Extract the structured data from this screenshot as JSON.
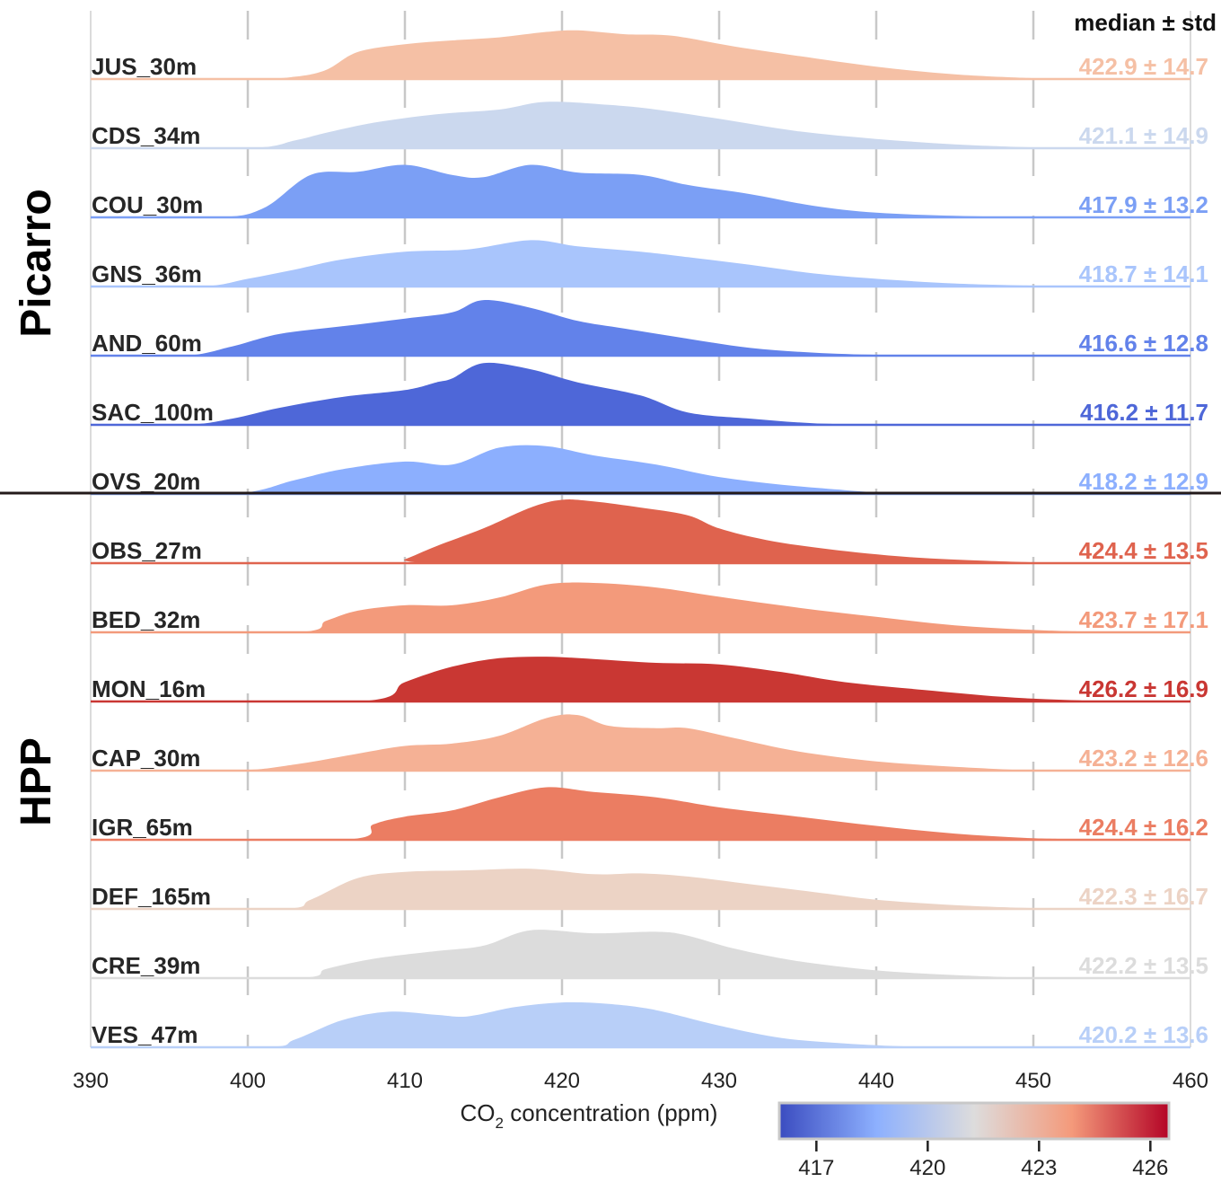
{
  "chart_data": {
    "type": "ridgeline",
    "xlabel": "CO2 concentration (ppm)",
    "xlabel_main": "CO",
    "xlabel_sub": "2",
    "xlabel_rest": " concentration (ppm)",
    "xlim": [
      390,
      460
    ],
    "xticks": [
      "390",
      "400",
      "410",
      "420",
      "430",
      "440",
      "450",
      "460"
    ],
    "stat_header": "median ± std",
    "groups": [
      {
        "name": "Picarro",
        "start": 0,
        "end": 6
      },
      {
        "name": "HPP",
        "start": 7,
        "end": 14
      }
    ],
    "colorbar": {
      "range": [
        416,
        426.5
      ],
      "ticks": [
        "417",
        "420",
        "423",
        "426"
      ],
      "colors": [
        "#3b4cc0",
        "#8db0fe",
        "#dddcdc",
        "#f49a7b",
        "#b40426"
      ]
    },
    "series": [
      {
        "name": "JUS_30m",
        "stat": "422.9 ± 14.7",
        "color": "#f5c0a5",
        "density": [
          [
            390,
            0
          ],
          [
            400,
            0
          ],
          [
            403,
            0.03
          ],
          [
            405,
            0.12
          ],
          [
            407,
            0.35
          ],
          [
            410,
            0.45
          ],
          [
            413,
            0.5
          ],
          [
            416,
            0.54
          ],
          [
            419,
            0.61
          ],
          [
            421,
            0.63
          ],
          [
            424,
            0.58
          ],
          [
            427,
            0.56
          ],
          [
            431,
            0.42
          ],
          [
            435,
            0.3
          ],
          [
            440,
            0.16
          ],
          [
            445,
            0.06
          ],
          [
            450,
            0.01
          ],
          [
            452,
            0
          ]
        ]
      },
      {
        "name": "CDS_34m",
        "stat": "421.1 ± 14.9",
        "color": "#cbd8ee",
        "density": [
          [
            390,
            0
          ],
          [
            400,
            0
          ],
          [
            403,
            0.1
          ],
          [
            405,
            0.2
          ],
          [
            408,
            0.33
          ],
          [
            412,
            0.44
          ],
          [
            416,
            0.5
          ],
          [
            419,
            0.6
          ],
          [
            423,
            0.56
          ],
          [
            426,
            0.5
          ],
          [
            430,
            0.38
          ],
          [
            435,
            0.22
          ],
          [
            440,
            0.12
          ],
          [
            445,
            0.05
          ],
          [
            450,
            0.01
          ],
          [
            452,
            0
          ]
        ]
      },
      {
        "name": "COU_30m",
        "stat": "417.9 ± 13.2",
        "color": "#7b9ff5",
        "density": [
          [
            390,
            0
          ],
          [
            398,
            0
          ],
          [
            401,
            0.12
          ],
          [
            404,
            0.55
          ],
          [
            407,
            0.59
          ],
          [
            410,
            0.68
          ],
          [
            413,
            0.55
          ],
          [
            415,
            0.52
          ],
          [
            418,
            0.68
          ],
          [
            421,
            0.58
          ],
          [
            425,
            0.55
          ],
          [
            428,
            0.42
          ],
          [
            432,
            0.3
          ],
          [
            436,
            0.15
          ],
          [
            440,
            0.06
          ],
          [
            445,
            0.02
          ],
          [
            450,
            0
          ]
        ]
      },
      {
        "name": "GNS_36m",
        "stat": "418.7 ± 14.1",
        "color": "#a9c5fc",
        "density": [
          [
            390,
            0
          ],
          [
            397,
            0
          ],
          [
            400,
            0.1
          ],
          [
            403,
            0.22
          ],
          [
            406,
            0.35
          ],
          [
            410,
            0.45
          ],
          [
            414,
            0.48
          ],
          [
            418,
            0.6
          ],
          [
            421,
            0.52
          ],
          [
            425,
            0.45
          ],
          [
            428,
            0.38
          ],
          [
            432,
            0.28
          ],
          [
            436,
            0.17
          ],
          [
            440,
            0.1
          ],
          [
            445,
            0.04
          ],
          [
            450,
            0.01
          ],
          [
            452,
            0
          ]
        ]
      },
      {
        "name": "AND_60m",
        "stat": "416.6 ± 12.8",
        "color": "#6282ea",
        "density": [
          [
            390,
            0
          ],
          [
            396,
            0
          ],
          [
            399,
            0.12
          ],
          [
            402,
            0.28
          ],
          [
            406,
            0.38
          ],
          [
            410,
            0.48
          ],
          [
            413,
            0.56
          ],
          [
            415,
            0.72
          ],
          [
            418,
            0.62
          ],
          [
            421,
            0.45
          ],
          [
            424,
            0.35
          ],
          [
            428,
            0.22
          ],
          [
            432,
            0.1
          ],
          [
            436,
            0.04
          ],
          [
            440,
            0.01
          ],
          [
            443,
            0
          ]
        ]
      },
      {
        "name": "SAC_100m",
        "stat": "416.2 ± 11.7",
        "color": "#4e67d8",
        "density": [
          [
            390,
            0
          ],
          [
            396,
            0
          ],
          [
            399,
            0.08
          ],
          [
            402,
            0.22
          ],
          [
            406,
            0.36
          ],
          [
            410,
            0.45
          ],
          [
            412,
            0.55
          ],
          [
            413,
            0.6
          ],
          [
            415,
            0.8
          ],
          [
            418,
            0.72
          ],
          [
            421,
            0.55
          ],
          [
            425,
            0.38
          ],
          [
            428,
            0.16
          ],
          [
            432,
            0.08
          ],
          [
            436,
            0.02
          ],
          [
            440,
            0
          ]
        ]
      },
      {
        "name": "OVS_20m",
        "stat": "418.2 ± 12.9",
        "color": "#8caffe",
        "density": [
          [
            390,
            0
          ],
          [
            399,
            0
          ],
          [
            403,
            0.18
          ],
          [
            406,
            0.32
          ],
          [
            410,
            0.42
          ],
          [
            413,
            0.38
          ],
          [
            416,
            0.6
          ],
          [
            419,
            0.62
          ],
          [
            422,
            0.5
          ],
          [
            426,
            0.38
          ],
          [
            430,
            0.22
          ],
          [
            434,
            0.12
          ],
          [
            438,
            0.05
          ],
          [
            441,
            0.01
          ],
          [
            443,
            0
          ]
        ]
      },
      {
        "name": "OBS_27m",
        "stat": "424.4 ± 13.5",
        "color": "#df634e",
        "density": [
          [
            390,
            0
          ],
          [
            409,
            0
          ],
          [
            410,
            0.05
          ],
          [
            412,
            0.22
          ],
          [
            415,
            0.45
          ],
          [
            418,
            0.72
          ],
          [
            420,
            0.82
          ],
          [
            422,
            0.8
          ],
          [
            425,
            0.72
          ],
          [
            428,
            0.62
          ],
          [
            430,
            0.45
          ],
          [
            433,
            0.3
          ],
          [
            437,
            0.18
          ],
          [
            442,
            0.08
          ],
          [
            447,
            0.03
          ],
          [
            452,
            0
          ]
        ]
      },
      {
        "name": "BED_32m",
        "stat": "423.7 ± 17.1",
        "color": "#f39a7b",
        "density": [
          [
            390,
            0
          ],
          [
            403,
            0
          ],
          [
            405,
            0.15
          ],
          [
            407,
            0.28
          ],
          [
            410,
            0.35
          ],
          [
            413,
            0.35
          ],
          [
            416,
            0.45
          ],
          [
            419,
            0.62
          ],
          [
            422,
            0.64
          ],
          [
            426,
            0.58
          ],
          [
            430,
            0.46
          ],
          [
            435,
            0.32
          ],
          [
            440,
            0.2
          ],
          [
            445,
            0.09
          ],
          [
            450,
            0.03
          ],
          [
            455,
            0
          ]
        ]
      },
      {
        "name": "MON_16m",
        "stat": "426.2 ± 16.9",
        "color": "#c93733",
        "density": [
          [
            390,
            0
          ],
          [
            407,
            0
          ],
          [
            410,
            0.25
          ],
          [
            413,
            0.45
          ],
          [
            416,
            0.56
          ],
          [
            419,
            0.58
          ],
          [
            422,
            0.55
          ],
          [
            426,
            0.5
          ],
          [
            430,
            0.48
          ],
          [
            434,
            0.38
          ],
          [
            438,
            0.25
          ],
          [
            443,
            0.15
          ],
          [
            448,
            0.06
          ],
          [
            452,
            0.02
          ],
          [
            455,
            0
          ]
        ]
      },
      {
        "name": "CAP_30m",
        "stat": "423.2 ± 12.6",
        "color": "#f5b195",
        "density": [
          [
            390,
            0
          ],
          [
            399,
            0
          ],
          [
            403,
            0.08
          ],
          [
            407,
            0.22
          ],
          [
            410,
            0.32
          ],
          [
            413,
            0.35
          ],
          [
            416,
            0.45
          ],
          [
            419,
            0.68
          ],
          [
            421,
            0.72
          ],
          [
            423,
            0.58
          ],
          [
            426,
            0.55
          ],
          [
            428,
            0.55
          ],
          [
            431,
            0.42
          ],
          [
            435,
            0.25
          ],
          [
            440,
            0.12
          ],
          [
            445,
            0.05
          ],
          [
            450,
            0
          ]
        ]
      },
      {
        "name": "IGR_65m",
        "stat": "424.4 ± 16.2",
        "color": "#eb7d62",
        "density": [
          [
            390,
            0
          ],
          [
            406,
            0
          ],
          [
            408,
            0.2
          ],
          [
            410,
            0.3
          ],
          [
            413,
            0.38
          ],
          [
            416,
            0.55
          ],
          [
            419,
            0.68
          ],
          [
            422,
            0.62
          ],
          [
            426,
            0.55
          ],
          [
            430,
            0.42
          ],
          [
            435,
            0.3
          ],
          [
            440,
            0.18
          ],
          [
            445,
            0.08
          ],
          [
            450,
            0.02
          ],
          [
            455,
            0
          ]
        ]
      },
      {
        "name": "DEF_165m",
        "stat": "422.3 ± 16.7",
        "color": "#ecd3c5",
        "density": [
          [
            390,
            0
          ],
          [
            402,
            0
          ],
          [
            404,
            0.12
          ],
          [
            407,
            0.4
          ],
          [
            410,
            0.48
          ],
          [
            414,
            0.5
          ],
          [
            418,
            0.52
          ],
          [
            422,
            0.45
          ],
          [
            425,
            0.46
          ],
          [
            428,
            0.42
          ],
          [
            432,
            0.32
          ],
          [
            436,
            0.22
          ],
          [
            440,
            0.12
          ],
          [
            445,
            0.05
          ],
          [
            450,
            0.01
          ],
          [
            453,
            0
          ]
        ]
      },
      {
        "name": "CRE_39m",
        "stat": "422.2 ± 13.5",
        "color": "#dcdcdc",
        "density": [
          [
            390,
            0
          ],
          [
            403,
            0
          ],
          [
            405,
            0.12
          ],
          [
            408,
            0.25
          ],
          [
            412,
            0.35
          ],
          [
            415,
            0.42
          ],
          [
            418,
            0.62
          ],
          [
            422,
            0.58
          ],
          [
            426,
            0.6
          ],
          [
            428,
            0.55
          ],
          [
            431,
            0.38
          ],
          [
            435,
            0.22
          ],
          [
            440,
            0.1
          ],
          [
            445,
            0.04
          ],
          [
            450,
            0
          ]
        ]
      },
      {
        "name": "VES_47m",
        "stat": "420.2 ± 13.6",
        "color": "#b8cff8",
        "density": [
          [
            390,
            0
          ],
          [
            401,
            0
          ],
          [
            403,
            0.1
          ],
          [
            406,
            0.35
          ],
          [
            409,
            0.46
          ],
          [
            412,
            0.42
          ],
          [
            414,
            0.4
          ],
          [
            417,
            0.52
          ],
          [
            420,
            0.58
          ],
          [
            423,
            0.56
          ],
          [
            426,
            0.48
          ],
          [
            430,
            0.28
          ],
          [
            434,
            0.12
          ],
          [
            438,
            0.05
          ],
          [
            442,
            0.01
          ],
          [
            445,
            0
          ]
        ]
      }
    ]
  }
}
